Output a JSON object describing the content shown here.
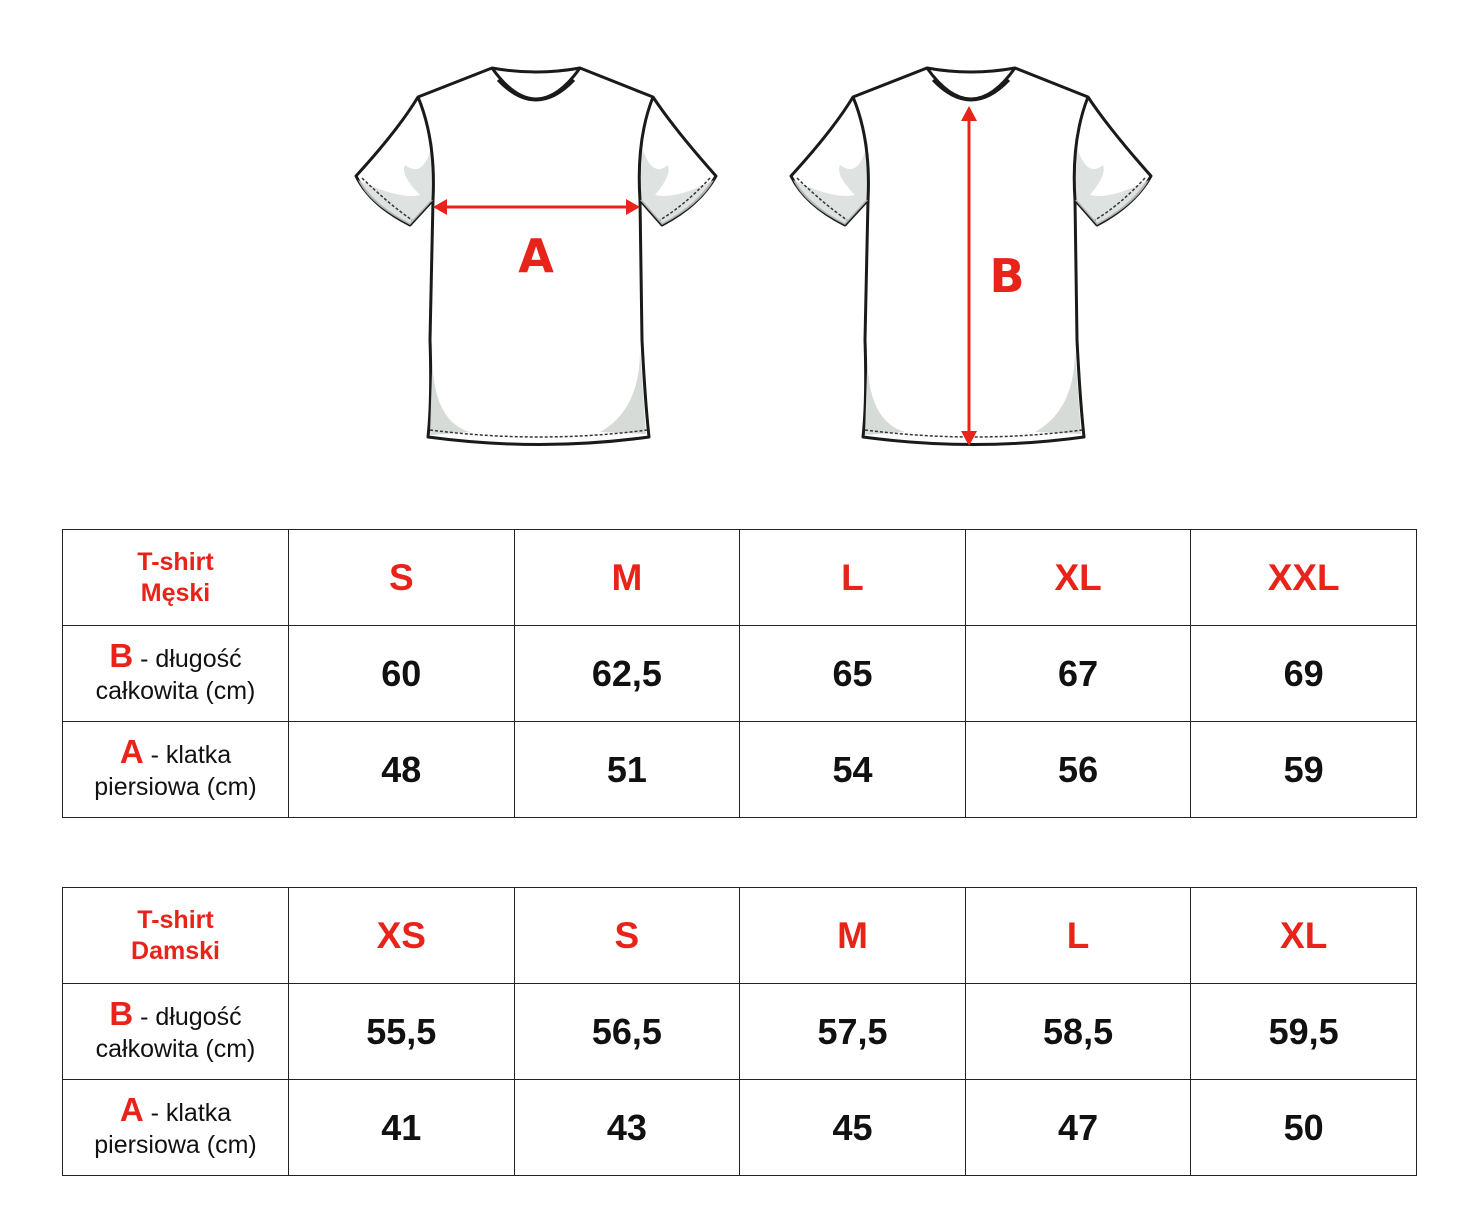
{
  "diagram": {
    "front_label": "A",
    "back_label": "B",
    "accent": "#e8231a",
    "shade": "#d6dbd8"
  },
  "tables": [
    {
      "title_line1": "T-shirt",
      "title_line2": "Męski",
      "sizes": [
        "S",
        "M",
        "L",
        "XL",
        "XXL"
      ],
      "rows": [
        {
          "letter": "B",
          "text1": " - długość",
          "text2": "całkowita (cm)",
          "values": [
            "60",
            "62,5",
            "65",
            "67",
            "69"
          ]
        },
        {
          "letter": "A",
          "text1": " - klatka",
          "text2": "piersiowa (cm)",
          "values": [
            "48",
            "51",
            "54",
            "56",
            "59"
          ]
        }
      ]
    },
    {
      "title_line1": "T-shirt",
      "title_line2": "Damski",
      "sizes": [
        "XS",
        "S",
        "M",
        "L",
        "XL"
      ],
      "rows": [
        {
          "letter": "B",
          "text1": " - długość",
          "text2": "całkowita (cm)",
          "values": [
            "55,5",
            "56,5",
            "57,5",
            "58,5",
            "59,5"
          ]
        },
        {
          "letter": "A",
          "text1": " - klatka",
          "text2": "piersiowa (cm)",
          "values": [
            "41",
            "43",
            "45",
            "47",
            "50"
          ]
        }
      ]
    }
  ]
}
